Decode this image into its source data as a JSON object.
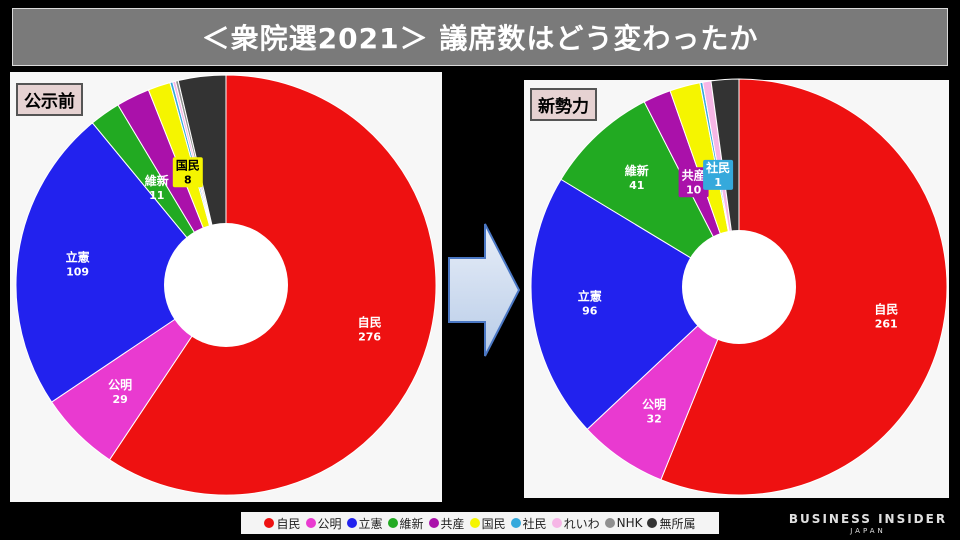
{
  "title": "＜衆院選2021＞ 議席数はどう変わったか",
  "colors": {
    "自民": "#ee1111",
    "公明": "#e93ad0",
    "立憲": "#2222ee",
    "維新": "#22aa22",
    "共産": "#aa11aa",
    "国民": "#f5f500",
    "社民": "#35a9dc",
    "れいわ": "#f6b6e6",
    "NHK": "#909090",
    "無所属": "#333333"
  },
  "chart_data": [
    {
      "type": "pie",
      "title": "公示前",
      "series": [
        {
          "name": "自民",
          "value": 276,
          "label": "自民",
          "value_label": "276"
        },
        {
          "name": "公明",
          "value": 29,
          "label": "公明",
          "value_label": "29"
        },
        {
          "name": "立憲",
          "value": 109,
          "label": "立憲",
          "value_label": "109"
        },
        {
          "name": "維新",
          "value": 11,
          "label": "維新",
          "value_label": "11"
        },
        {
          "name": "共産",
          "value": 12
        },
        {
          "name": "国民",
          "value": 8,
          "label": "国民",
          "value_label": "8"
        },
        {
          "name": "社民",
          "value": 1
        },
        {
          "name": "れいわ",
          "value": 1
        },
        {
          "name": "NHK",
          "value": 1
        },
        {
          "name": "無所属",
          "value": 17
        }
      ]
    },
    {
      "type": "pie",
      "title": "新勢力",
      "series": [
        {
          "name": "自民",
          "value": 261,
          "label": "自民",
          "value_label": "261"
        },
        {
          "name": "公明",
          "value": 32,
          "label": "公明",
          "value_label": "32"
        },
        {
          "name": "立憲",
          "value": 96,
          "label": "立憲",
          "value_label": "96"
        },
        {
          "name": "維新",
          "value": 41,
          "label": "維新",
          "value_label": "41"
        },
        {
          "name": "共産",
          "value": 10,
          "label": "共産",
          "value_label": "10"
        },
        {
          "name": "国民",
          "value": 11
        },
        {
          "name": "社民",
          "value": 1,
          "label": "社民",
          "value_label": "1"
        },
        {
          "name": "れいわ",
          "value": 3
        },
        {
          "name": "NHK",
          "value": 0
        },
        {
          "name": "無所属",
          "value": 10
        }
      ]
    }
  ],
  "legend": [
    "自民",
    "公明",
    "立憲",
    "維新",
    "共産",
    "国民",
    "社民",
    "れいわ",
    "NHK",
    "無所属"
  ],
  "brand": {
    "name": "BUSINESS INSIDER",
    "sub": "JAPAN"
  }
}
